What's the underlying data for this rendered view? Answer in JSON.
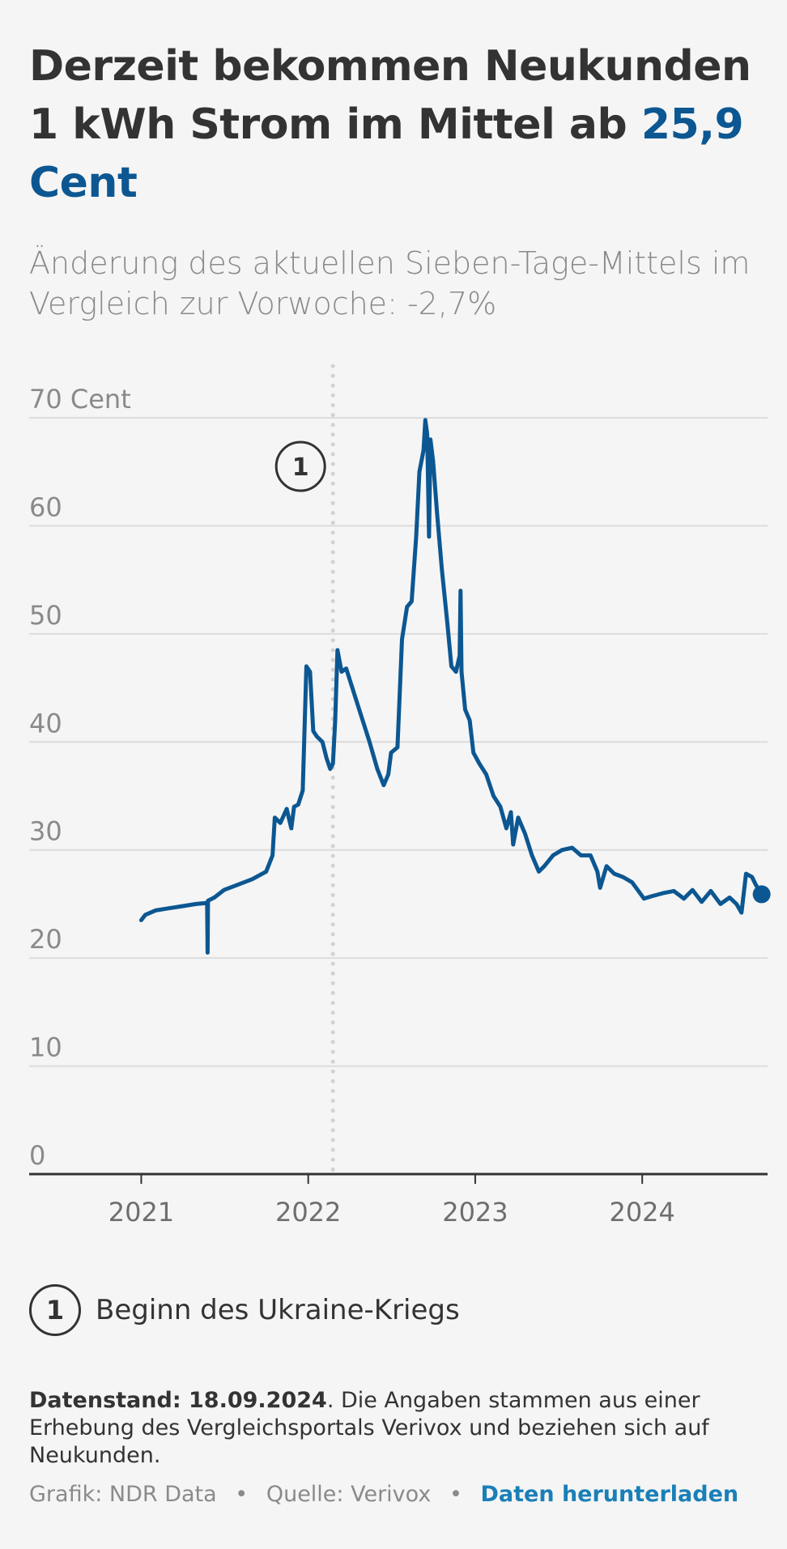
{
  "header": {
    "title_main": "Derzeit bekommen Neukunden 1 kWh Strom im Mittel ab",
    "title_value": "25,9 Cent",
    "subtitle": "Änderung des aktuellen Sieben-Tage-Mittels im Vergleich zur Vorwoche: -2,7%"
  },
  "legend": {
    "badge": "1",
    "label": "Beginn des Ukraine-Kriegs"
  },
  "note": {
    "bold": "Datenstand: 18.09.2024",
    "text": ". Die Angaben stammen aus einer Erhebung des Vergleichsportals Verivox und beziehen sich auf Neukunden."
  },
  "footer": {
    "grafik": "Grafik: NDR Data",
    "quelle": "Quelle: Verivox",
    "separator": "•",
    "download_link": "Daten herunterladen"
  },
  "colors": {
    "line": "#0c5792",
    "grid": "#dcdcdc",
    "axis_text": "#8a8a8a",
    "link": "#1a7fb7"
  },
  "chart_data": {
    "type": "line",
    "ylim": [
      0,
      70
    ],
    "yticks": [
      0,
      10,
      20,
      30,
      40,
      50,
      60,
      70
    ],
    "ytick_labels": [
      "0",
      "10",
      "20",
      "30",
      "40",
      "50",
      "60",
      "70 Cent"
    ],
    "xlim": [
      "2020-05-01",
      "2024-10-01"
    ],
    "xticks": [
      "2021-01-01",
      "2022-01-01",
      "2023-01-01",
      "2024-01-01"
    ],
    "xtick_labels": [
      "2021",
      "2022",
      "2023",
      "2024"
    ],
    "annotation": {
      "date": "2022-02-24",
      "label": "1"
    },
    "series": [
      {
        "points": [
          [
            "2021-01-01",
            23.5
          ],
          [
            "2021-01-10",
            24.0
          ],
          [
            "2021-02-01",
            24.4
          ],
          [
            "2021-03-01",
            24.6
          ],
          [
            "2021-04-01",
            24.8
          ],
          [
            "2021-05-01",
            25.0
          ],
          [
            "2021-05-25",
            25.1
          ],
          [
            "2021-05-26",
            20.5
          ],
          [
            "2021-05-27",
            25.3
          ],
          [
            "2021-06-10",
            25.6
          ],
          [
            "2021-07-01",
            26.3
          ],
          [
            "2021-08-01",
            26.8
          ],
          [
            "2021-09-01",
            27.3
          ],
          [
            "2021-10-01",
            28.0
          ],
          [
            "2021-10-15",
            29.5
          ],
          [
            "2021-10-20",
            33.0
          ],
          [
            "2021-11-01",
            32.5
          ],
          [
            "2021-11-15",
            33.8
          ],
          [
            "2021-11-25",
            32.0
          ],
          [
            "2021-12-01",
            34.0
          ],
          [
            "2021-12-10",
            34.2
          ],
          [
            "2021-12-20",
            35.5
          ],
          [
            "2021-12-28",
            47.0
          ],
          [
            "2022-01-05",
            46.5
          ],
          [
            "2022-01-12",
            41.0
          ],
          [
            "2022-01-20",
            40.5
          ],
          [
            "2022-02-01",
            40.0
          ],
          [
            "2022-02-10",
            38.5
          ],
          [
            "2022-02-18",
            37.5
          ],
          [
            "2022-02-24",
            38.0
          ],
          [
            "2022-03-01",
            42.0
          ],
          [
            "2022-03-06",
            48.5
          ],
          [
            "2022-03-15",
            46.5
          ],
          [
            "2022-03-25",
            46.8
          ],
          [
            "2022-04-15",
            44.0
          ],
          [
            "2022-05-15",
            40.0
          ],
          [
            "2022-06-01",
            37.5
          ],
          [
            "2022-06-15",
            36.0
          ],
          [
            "2022-06-25",
            37.0
          ],
          [
            "2022-07-01",
            39.0
          ],
          [
            "2022-07-15",
            39.5
          ],
          [
            "2022-07-25",
            49.5
          ],
          [
            "2022-08-05",
            52.5
          ],
          [
            "2022-08-15",
            53.0
          ],
          [
            "2022-08-25",
            59.0
          ],
          [
            "2022-09-01",
            65.0
          ],
          [
            "2022-09-10",
            67.0
          ],
          [
            "2022-09-14",
            69.8
          ],
          [
            "2022-09-18",
            68.5
          ],
          [
            "2022-09-22",
            59.0
          ],
          [
            "2022-09-25",
            68.0
          ],
          [
            "2022-10-01",
            66.0
          ],
          [
            "2022-10-10",
            61.0
          ],
          [
            "2022-10-20",
            56.0
          ],
          [
            "2022-11-01",
            51.0
          ],
          [
            "2022-11-10",
            47.0
          ],
          [
            "2022-11-20",
            46.5
          ],
          [
            "2022-11-28",
            48.0
          ],
          [
            "2022-11-30",
            54.0
          ],
          [
            "2022-12-02",
            46.5
          ],
          [
            "2022-12-10",
            43.0
          ],
          [
            "2022-12-20",
            42.0
          ],
          [
            "2022-12-28",
            39.0
          ],
          [
            "2023-01-10",
            38.0
          ],
          [
            "2023-01-25",
            37.0
          ],
          [
            "2023-02-10",
            35.0
          ],
          [
            "2023-02-25",
            34.0
          ],
          [
            "2023-03-10",
            32.0
          ],
          [
            "2023-03-20",
            33.5
          ],
          [
            "2023-03-25",
            30.5
          ],
          [
            "2023-04-05",
            33.0
          ],
          [
            "2023-04-20",
            31.5
          ],
          [
            "2023-05-05",
            29.5
          ],
          [
            "2023-05-20",
            28.0
          ],
          [
            "2023-06-01",
            28.5
          ],
          [
            "2023-06-20",
            29.5
          ],
          [
            "2023-07-10",
            30.0
          ],
          [
            "2023-08-01",
            30.2
          ],
          [
            "2023-08-20",
            29.5
          ],
          [
            "2023-09-10",
            29.5
          ],
          [
            "2023-09-25",
            28.0
          ],
          [
            "2023-10-01",
            26.5
          ],
          [
            "2023-10-15",
            28.5
          ],
          [
            "2023-11-01",
            27.8
          ],
          [
            "2023-11-20",
            27.5
          ],
          [
            "2023-12-10",
            27.0
          ],
          [
            "2024-01-05",
            25.5
          ],
          [
            "2024-01-20",
            25.7
          ],
          [
            "2024-02-15",
            26.0
          ],
          [
            "2024-03-10",
            26.2
          ],
          [
            "2024-04-01",
            25.5
          ],
          [
            "2024-04-20",
            26.3
          ],
          [
            "2024-05-10",
            25.2
          ],
          [
            "2024-05-30",
            26.2
          ],
          [
            "2024-06-20",
            25.0
          ],
          [
            "2024-07-10",
            25.6
          ],
          [
            "2024-07-25",
            25.0
          ],
          [
            "2024-08-05",
            24.2
          ],
          [
            "2024-08-15",
            27.8
          ],
          [
            "2024-08-28",
            27.5
          ],
          [
            "2024-09-05",
            26.8
          ],
          [
            "2024-09-18",
            25.9
          ]
        ]
      }
    ]
  }
}
